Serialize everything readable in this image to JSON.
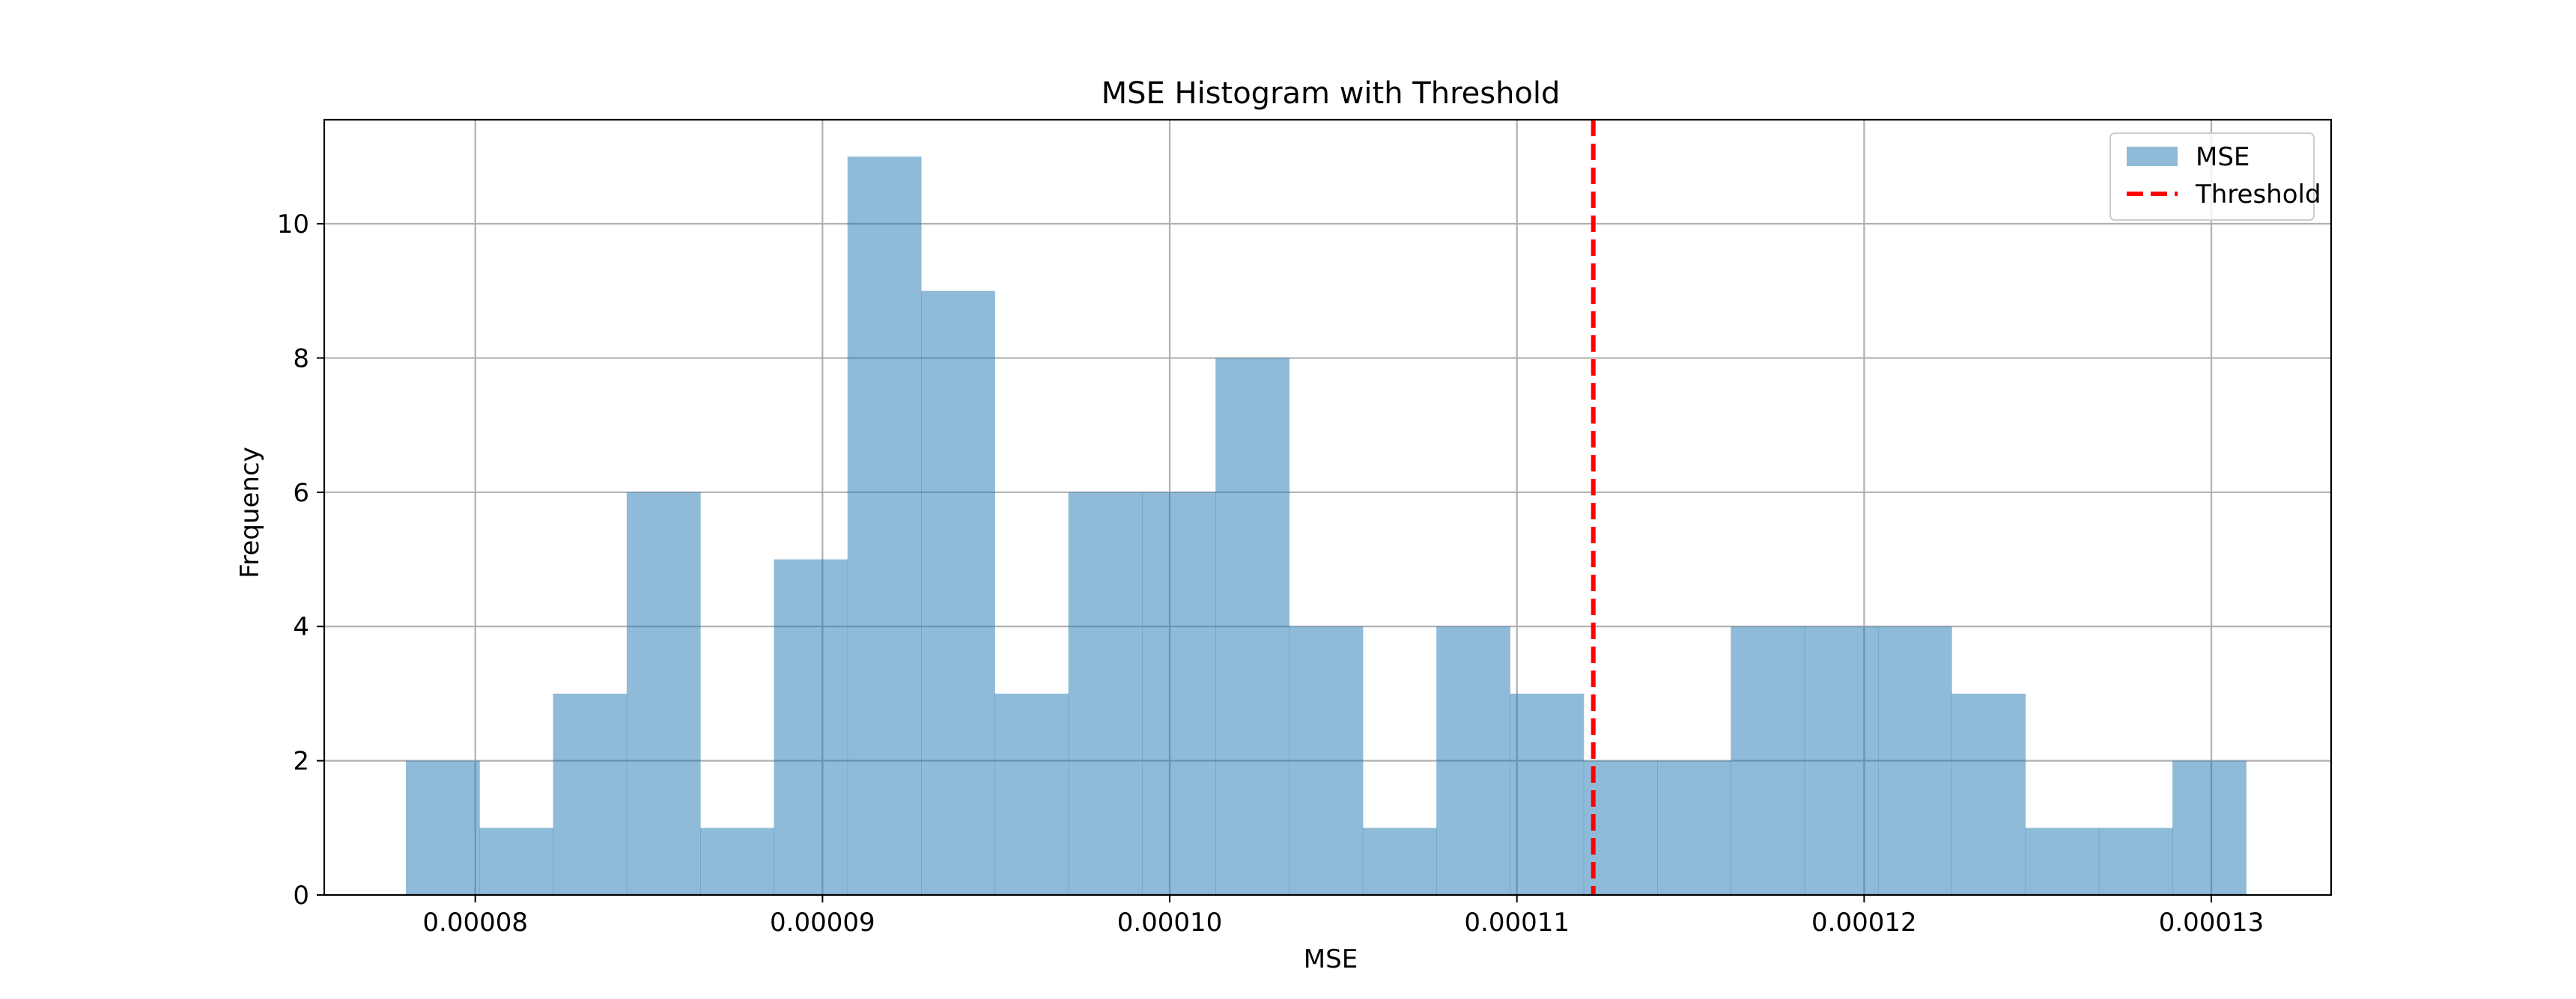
{
  "chart_data": {
    "type": "bar",
    "title": "MSE Histogram with Threshold",
    "xlabel": "MSE",
    "ylabel": "Frequency",
    "xlim": [
      7.565e-05,
      0.00013345
    ],
    "ylim": [
      0,
      11.55
    ],
    "bin_start": 7.8e-05,
    "bin_width": 2.12e-06,
    "values": [
      2,
      1,
      3,
      6,
      1,
      5,
      11,
      9,
      3,
      6,
      6,
      8,
      4,
      1,
      4,
      3,
      2,
      2,
      4,
      4,
      4,
      3,
      1,
      1,
      2
    ],
    "threshold": 0.0001122,
    "x_ticks": [
      {
        "value": 8e-05,
        "label": "0.00008"
      },
      {
        "value": 9e-05,
        "label": "0.00009"
      },
      {
        "value": 0.0001,
        "label": "0.00010"
      },
      {
        "value": 0.00011,
        "label": "0.00011"
      },
      {
        "value": 0.00012,
        "label": "0.00012"
      },
      {
        "value": 0.00013,
        "label": "0.00013"
      }
    ],
    "y_ticks": [
      {
        "value": 0,
        "label": "0"
      },
      {
        "value": 2,
        "label": "2"
      },
      {
        "value": 4,
        "label": "4"
      },
      {
        "value": 6,
        "label": "6"
      },
      {
        "value": 8,
        "label": "8"
      },
      {
        "value": 10,
        "label": "10"
      }
    ],
    "grid": true,
    "legend_position": "top-right",
    "legend": [
      {
        "label": "MSE",
        "kind": "patch"
      },
      {
        "label": "Threshold",
        "kind": "dashed-line"
      }
    ],
    "colors": {
      "bars": "#1f77b4",
      "bar_opacity": 0.5,
      "threshold": "#ff0000",
      "grid": "#b0b0b0"
    }
  }
}
